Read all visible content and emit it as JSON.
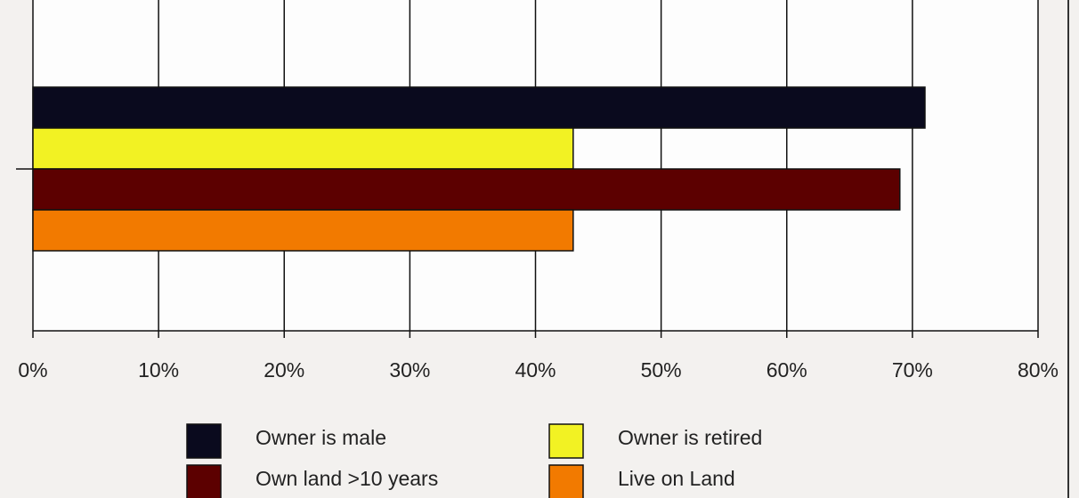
{
  "chart_data": {
    "type": "hbar",
    "categories": [
      null
    ],
    "series": [
      {
        "name": "Owner is male",
        "color": "#0a0a1e",
        "values": [
          71
        ]
      },
      {
        "name": "Owner is retired",
        "color": "#f2f223",
        "values": [
          43
        ]
      },
      {
        "name": "Own land >10 years",
        "color": "#5c0000",
        "values": [
          69
        ]
      },
      {
        "name": "Live on Land",
        "color": "#f27a00",
        "values": [
          43
        ]
      }
    ],
    "xlim": [
      0,
      80
    ],
    "xticks": [
      {
        "value": 0,
        "label": "0%"
      },
      {
        "value": 10,
        "label": "10%"
      },
      {
        "value": 20,
        "label": "20%"
      },
      {
        "value": 30,
        "label": "30%"
      },
      {
        "value": 40,
        "label": "40%"
      },
      {
        "value": 50,
        "label": "50%"
      },
      {
        "value": 60,
        "label": "60%"
      },
      {
        "value": 70,
        "label": "70%"
      },
      {
        "value": 80,
        "label": "80%"
      }
    ],
    "grid": true,
    "legend": "bottom"
  }
}
